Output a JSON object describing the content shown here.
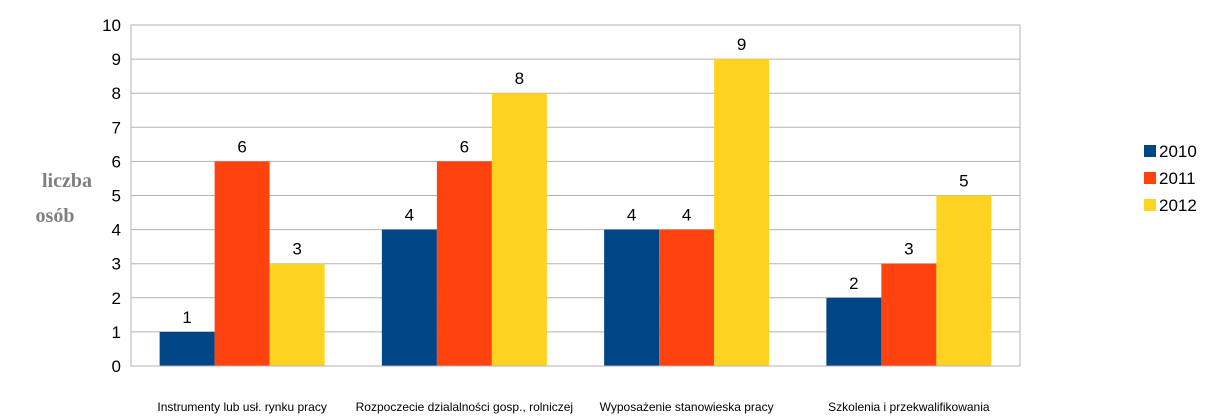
{
  "chart_data": {
    "type": "bar",
    "title": "",
    "xlabel": "",
    "ylabel_lines": [
      "liczba",
      "osób"
    ],
    "ylim": [
      0,
      10
    ],
    "yticks": [
      0,
      1,
      2,
      3,
      4,
      5,
      6,
      7,
      8,
      9,
      10
    ],
    "grid": true,
    "legend_position": "right",
    "categories": [
      "Instrumenty lub usł. rynku pracy",
      "Rozpoczecie dzialalności gosp., rolniczej",
      "Wyposażenie stanowieska pracy",
      "Szkolenia i przekwalifikowania"
    ],
    "series": [
      {
        "name": "2010",
        "color": "#004586",
        "values": [
          1,
          4,
          4,
          2
        ]
      },
      {
        "name": "2011",
        "color": "#ff420e",
        "values": [
          6,
          6,
          4,
          3
        ]
      },
      {
        "name": "2012",
        "color": "#ffd320",
        "values": [
          3,
          8,
          9,
          5
        ]
      }
    ]
  }
}
